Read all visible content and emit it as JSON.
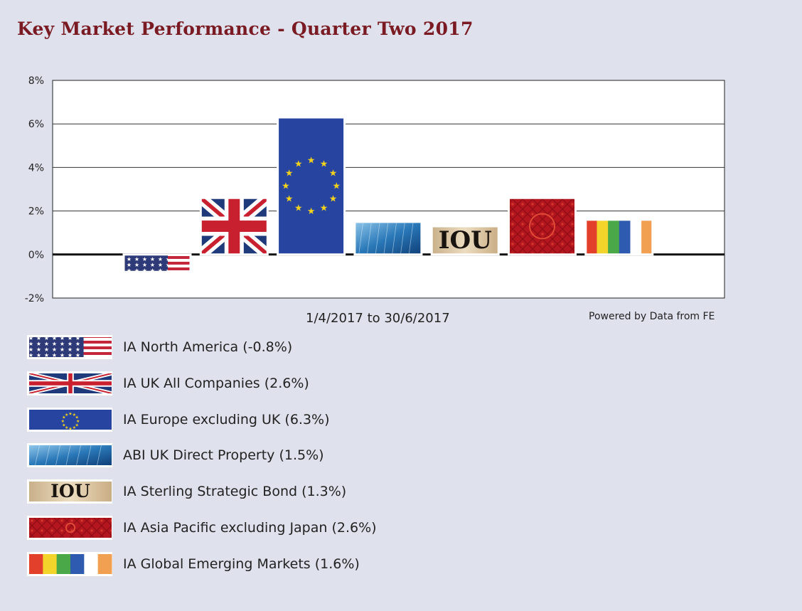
{
  "title": "Key Market Performance - Quarter Two 2017",
  "x_range_label": "1/4/2017 to 30/6/2017",
  "source_note": "Powered by Data from FE",
  "colors": {
    "title": "#7a1a22",
    "background": "#dfe1ec",
    "plot_bg": "#ffffff"
  },
  "chart_data": {
    "type": "bar",
    "title": "Key Market Performance - Quarter Two 2017",
    "xlabel": "1/4/2017 to 30/6/2017",
    "ylabel": "",
    "ylim": [
      -2,
      8
    ],
    "yticks": [
      8,
      6,
      4,
      2,
      0,
      -2
    ],
    "ytick_labels": [
      "8%",
      "6%",
      "4%",
      "2%",
      "0%",
      "-2%"
    ],
    "grid": true,
    "categories": [
      "IA North America",
      "IA UK All Companies",
      "IA Europe excluding UK",
      "ABI UK Direct Property",
      "IA Sterling Strategic Bond",
      "IA Asia Pacific excluding Japan",
      "IA Global Emerging Markets"
    ],
    "values": [
      -0.8,
      2.6,
      6.3,
      1.5,
      1.3,
      2.6,
      1.6
    ],
    "bar_styles": [
      "us-flag-icon",
      "uk-flag-icon",
      "eu-flag-icon",
      "glass-building-icon",
      "iou-note-icon",
      "chinese-pattern-icon",
      "rainbow-stripes-icon"
    ],
    "bar_text": [
      "",
      "",
      "",
      "",
      "IOU",
      "",
      ""
    ]
  },
  "legend": [
    {
      "label": "IA North America (-0.8%)",
      "icon": "us-flag-icon"
    },
    {
      "label": "IA UK All Companies (2.6%)",
      "icon": "uk-flag-icon"
    },
    {
      "label": "IA Europe excluding UK (6.3%)",
      "icon": "eu-flag-icon"
    },
    {
      "label": "ABI UK Direct Property (1.5%)",
      "icon": "glass-building-icon"
    },
    {
      "label": "IA Sterling Strategic Bond (1.3%)",
      "icon": "iou-note-icon",
      "text": "IOU"
    },
    {
      "label": "IA Asia Pacific excluding Japan (2.6%)",
      "icon": "chinese-pattern-icon"
    },
    {
      "label": "IA Global Emerging Markets (1.6%)",
      "icon": "rainbow-stripes-icon"
    }
  ]
}
